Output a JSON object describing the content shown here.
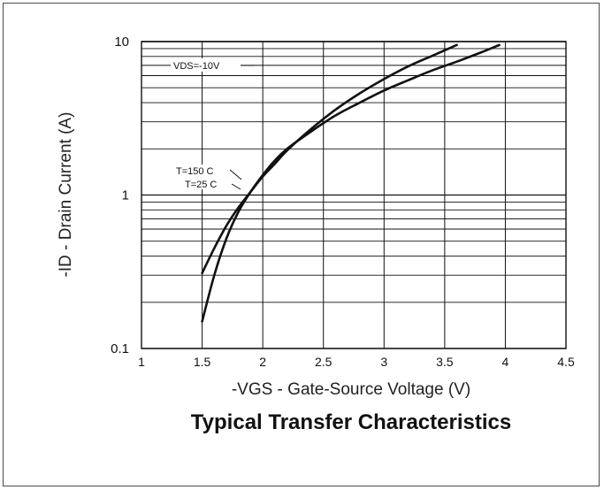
{
  "chart_data": {
    "type": "line",
    "title": "Typical Transfer Characteristics",
    "xlabel": "-VGS - Gate-Source Voltage (V)",
    "ylabel": "-ID - Drain Current (A)",
    "xlim": [
      1,
      4.5
    ],
    "ylim": [
      0.1,
      10
    ],
    "yscale": "log",
    "grid": true,
    "x_ticks": [
      "1",
      "1.5",
      "2",
      "2.5",
      "3",
      "3.5",
      "4",
      "4.5"
    ],
    "y_ticks": [
      "0.1",
      "1",
      "10"
    ],
    "annotations": {
      "vds": "VDS=-10V",
      "t150": "T=150 C",
      "t25": "T=25 C"
    },
    "series": [
      {
        "name": "T=150 C",
        "x": [
          1.5,
          1.6,
          1.7,
          1.8,
          1.9,
          2.0,
          2.1,
          2.2,
          2.4,
          2.6,
          2.8,
          3.0,
          3.2,
          3.4,
          3.6
        ],
        "y": [
          0.31,
          0.45,
          0.63,
          0.83,
          1.05,
          1.32,
          1.6,
          1.95,
          2.7,
          3.6,
          4.6,
          5.7,
          6.9,
          8.1,
          9.5
        ]
      },
      {
        "name": "T=25 C",
        "x": [
          1.5,
          1.6,
          1.7,
          1.8,
          1.9,
          2.0,
          2.1,
          2.2,
          2.4,
          2.6,
          2.8,
          3.0,
          3.2,
          3.4,
          3.6,
          3.8,
          3.95
        ],
        "y": [
          0.15,
          0.3,
          0.52,
          0.78,
          1.05,
          1.35,
          1.68,
          2.0,
          2.6,
          3.3,
          4.0,
          4.8,
          5.6,
          6.5,
          7.4,
          8.5,
          9.5
        ]
      }
    ]
  }
}
